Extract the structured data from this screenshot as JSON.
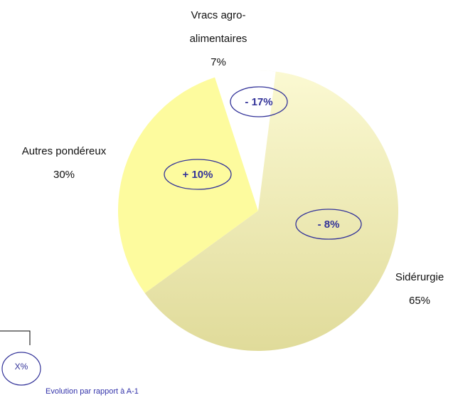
{
  "chart_data": {
    "type": "pie",
    "categories": [
      "Sidérurgie",
      "Autres pondéreux",
      "Vracs agro-alimentaires"
    ],
    "values": [
      65,
      30,
      7
    ],
    "value_labels": [
      "65%",
      "30%",
      "7%"
    ],
    "colors": [
      "#ece8aa",
      "#fdfb9e",
      "#ffffff"
    ],
    "evolution": [
      -8,
      10,
      -17
    ],
    "evolution_labels": [
      "- 8%",
      "+ 10%",
      "- 17%"
    ],
    "legend_symbol": "X%",
    "legend_text": "Evolution par rapport à A-1"
  }
}
